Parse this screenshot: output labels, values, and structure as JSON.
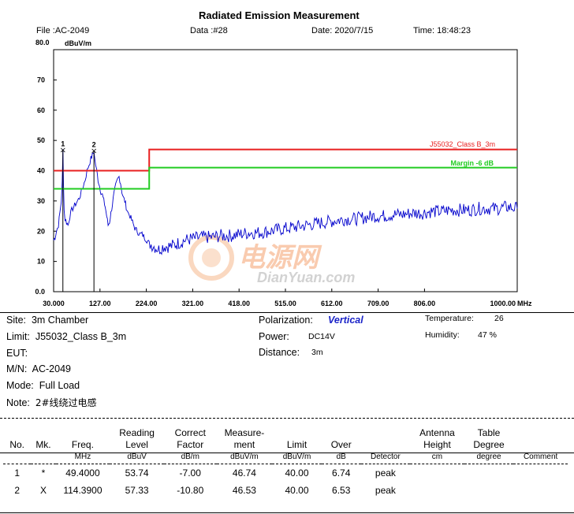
{
  "header": {
    "title": "Radiated Emission Measurement",
    "file": "File :AC-2049",
    "data": "Data :#28",
    "date": "Date: 2020/7/15",
    "time": "Time: 18:48:23"
  },
  "chart_data": {
    "type": "line",
    "title": "Radiated Emission Measurement",
    "xlabel": "MHz",
    "ylabel": "dBuV/m",
    "xlim": [
      30,
      1000
    ],
    "ylim": [
      0,
      80
    ],
    "x_ticks": [
      "30.000",
      "127.00",
      "224.00",
      "321.00",
      "418.00",
      "515.00",
      "612.00",
      "709.00",
      "806.00",
      "1000.00"
    ],
    "x_tick_values": [
      30,
      127,
      224,
      321,
      418,
      515,
      612,
      709,
      806,
      1000
    ],
    "y_ticks": [
      "0.0",
      "10",
      "20",
      "30",
      "40",
      "50",
      "60",
      "70",
      "80.0"
    ],
    "y_tick_values": [
      0,
      10,
      20,
      30,
      40,
      50,
      60,
      70,
      80
    ],
    "grid": false,
    "limit_line": {
      "name": "J55032_Class B_3m",
      "color": "#e82020",
      "points": [
        [
          30,
          40
        ],
        [
          230,
          40
        ],
        [
          230,
          47
        ],
        [
          1000,
          47
        ]
      ]
    },
    "margin_line": {
      "name": "Margin -6 dB",
      "color": "#22cc22",
      "points": [
        [
          30,
          34
        ],
        [
          230,
          34
        ],
        [
          230,
          41
        ],
        [
          1000,
          41
        ]
      ]
    },
    "trace": {
      "color": "#0000cc",
      "points": [
        [
          30,
          17
        ],
        [
          33,
          18
        ],
        [
          36,
          20
        ],
        [
          40,
          22
        ],
        [
          43,
          26
        ],
        [
          46,
          30
        ],
        [
          48,
          36
        ],
        [
          49.4,
          46.74
        ],
        [
          50.5,
          38
        ],
        [
          52,
          27
        ],
        [
          54,
          24
        ],
        [
          57,
          23
        ],
        [
          60,
          22
        ],
        [
          64,
          25
        ],
        [
          68,
          27
        ],
        [
          72,
          28
        ],
        [
          76,
          29
        ],
        [
          80,
          30
        ],
        [
          84,
          31
        ],
        [
          88,
          33
        ],
        [
          92,
          35
        ],
        [
          96,
          37
        ],
        [
          100,
          40
        ],
        [
          104,
          42
        ],
        [
          108,
          44
        ],
        [
          111,
          45
        ],
        [
          114.39,
          46.53
        ],
        [
          116,
          44
        ],
        [
          118,
          42
        ],
        [
          120,
          40
        ],
        [
          123,
          37
        ],
        [
          126,
          35
        ],
        [
          129,
          33
        ],
        [
          132,
          32
        ],
        [
          135,
          30
        ],
        [
          138,
          28
        ],
        [
          141,
          25
        ],
        [
          144,
          22
        ],
        [
          147,
          23
        ],
        [
          150,
          26
        ],
        [
          153,
          29
        ],
        [
          156,
          32
        ],
        [
          160,
          35
        ],
        [
          164,
          37
        ],
        [
          167,
          38
        ],
        [
          170,
          36
        ],
        [
          173,
          33
        ],
        [
          176,
          31
        ],
        [
          179,
          30
        ],
        [
          182,
          28
        ],
        [
          186,
          26
        ],
        [
          190,
          25
        ],
        [
          195,
          23
        ],
        [
          200,
          21
        ],
        [
          205,
          20
        ],
        [
          210,
          19
        ],
        [
          215,
          19
        ],
        [
          220,
          18
        ],
        [
          225,
          17
        ],
        [
          230,
          16
        ],
        [
          240,
          15
        ],
        [
          250,
          14
        ],
        [
          260,
          15
        ],
        [
          275,
          15
        ],
        [
          290,
          16
        ],
        [
          305,
          17
        ],
        [
          320,
          17.5
        ],
        [
          340,
          18
        ],
        [
          360,
          18
        ],
        [
          380,
          18.5
        ],
        [
          400,
          18.5
        ],
        [
          420,
          19
        ],
        [
          440,
          19.5
        ],
        [
          460,
          19.5
        ],
        [
          480,
          20
        ],
        [
          500,
          20.5
        ],
        [
          520,
          21
        ],
        [
          540,
          21.5
        ],
        [
          560,
          22
        ],
        [
          580,
          22.5
        ],
        [
          600,
          23
        ],
        [
          620,
          23.5
        ],
        [
          640,
          24
        ],
        [
          660,
          24
        ],
        [
          680,
          24.5
        ],
        [
          700,
          25
        ],
        [
          720,
          25
        ],
        [
          740,
          25.5
        ],
        [
          760,
          25.5
        ],
        [
          780,
          26
        ],
        [
          800,
          26
        ],
        [
          820,
          26.5
        ],
        [
          840,
          26.5
        ],
        [
          860,
          27
        ],
        [
          880,
          27
        ],
        [
          900,
          27
        ],
        [
          920,
          27.5
        ],
        [
          940,
          27.5
        ],
        [
          960,
          27.5
        ],
        [
          980,
          28
        ],
        [
          1000,
          27.5
        ]
      ]
    },
    "markers": [
      {
        "label": "1",
        "freq": 49.4,
        "level": 46.74
      },
      {
        "label": "2",
        "freq": 114.39,
        "level": 46.53
      }
    ],
    "watermark": {
      "text_cn": "电源网",
      "text_en": "DianYuan.com"
    }
  },
  "info": {
    "site_label": "Site:",
    "site_value": "3m Chamber",
    "limit_label": "Limit:",
    "limit_value": "J55032_Class B_3m",
    "eut_label": "EUT:",
    "mn_label": "M/N:",
    "mn_value": "AC-2049",
    "mode_label": "Mode:",
    "mode_value": "Full Load",
    "note_label": "Note:",
    "note_value": "2#线绕过电感",
    "polarization_label": "Polarization:",
    "polarization_value": "Vertical",
    "power_label": "Power:",
    "power_value": "DC14V",
    "distance_label": "Distance:",
    "distance_value": "3m",
    "temperature_label": "Temperature:",
    "temperature_value": "26",
    "humidity_label": "Humidity:",
    "humidity_value": "47 %"
  },
  "results_table": {
    "headers": [
      "No.",
      "Mk.",
      "Freq.",
      "Reading Level",
      "Correct Factor",
      "Measure- ment",
      "Limit",
      "Over",
      "",
      "Antenna Height",
      "Table Degree",
      ""
    ],
    "units": [
      "",
      "",
      "MHz",
      "dBuV",
      "dB/m",
      "dBuV/m",
      "dBuV/m",
      "dB",
      "Detector",
      "cm",
      "degree",
      "Comment"
    ],
    "rows": [
      [
        "1",
        "*",
        "49.4000",
        "53.74",
        "-7.00",
        "46.74",
        "40.00",
        "6.74",
        "peak",
        "",
        "",
        ""
      ],
      [
        "2",
        "X",
        "114.3900",
        "57.33",
        "-10.80",
        "46.53",
        "40.00",
        "6.53",
        "peak",
        "",
        "",
        ""
      ]
    ]
  }
}
